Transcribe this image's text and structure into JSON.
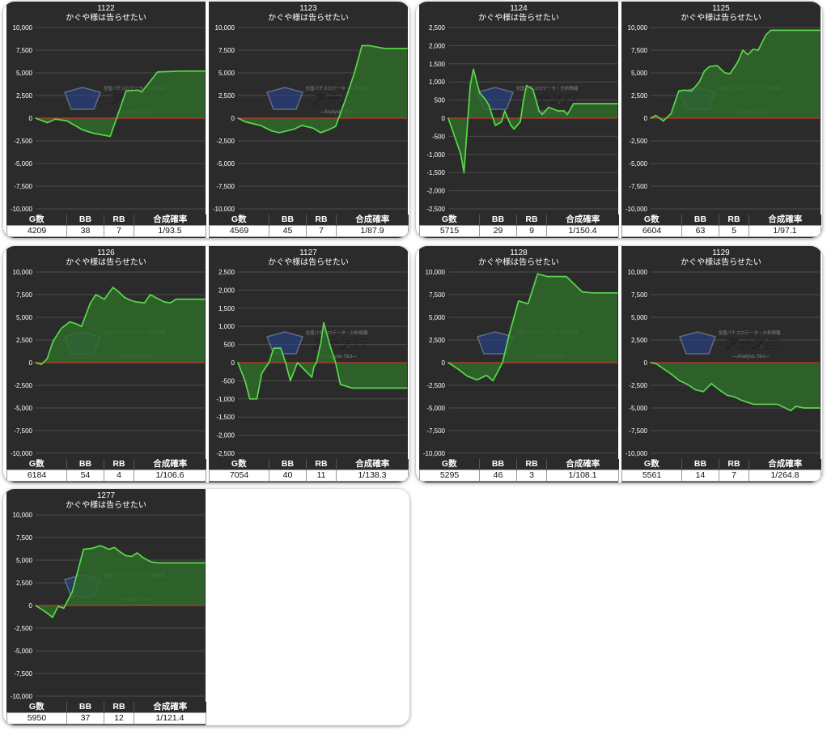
{
  "title_text": "かぐや様は告らせたい",
  "headers": [
    "G数",
    "BB",
    "RB",
    "合成確率"
  ],
  "watermark": {
    "main": "アナスロ",
    "sub": "—Analysis Slot—",
    "top": "全国パチスロデータ・分析情報"
  },
  "colors": {
    "panel_bg": "#2b2b2b",
    "line": "#58d94a",
    "fill": "#2f6a2a",
    "zero_line": "#c0392b",
    "grid": "#4c4c4c",
    "text": "#ffffff"
  },
  "chart_data": [
    {
      "type": "area",
      "machine": "1122",
      "title": "かぐや様は告らせたい",
      "ylim": [
        -10000,
        10000
      ],
      "yticks": [
        "10,000",
        "7,500",
        "5,000",
        "2,500",
        "0",
        "-2,500",
        "-5,000",
        "-7,500",
        "-10,000"
      ],
      "x": [
        0,
        3,
        5,
        8,
        12,
        15,
        19,
        21,
        23,
        26,
        27,
        31,
        37,
        43
      ],
      "y": [
        0,
        -500,
        -100,
        -300,
        -1300,
        -1700,
        -2000,
        500,
        3000,
        3100,
        2900,
        5100,
        5200,
        5200
      ],
      "stats": {
        "games": "4209",
        "bb": "38",
        "rb": "7",
        "rate": "1/93.5"
      }
    },
    {
      "type": "area",
      "machine": "1123",
      "title": "かぐや様は告らせたい",
      "ylim": [
        -10000,
        10000
      ],
      "yticks": [
        "10,000",
        "7,500",
        "5,000",
        "2,500",
        "0",
        "-2,500",
        "-5,000",
        "-7,500",
        "-10,000"
      ],
      "x": [
        0,
        2,
        6,
        9,
        11,
        13,
        15,
        17,
        18,
        20,
        22,
        24,
        26,
        29,
        31,
        33,
        35,
        39,
        41,
        45
      ],
      "y": [
        0,
        -400,
        -800,
        -1400,
        -1600,
        -1400,
        -1200,
        -800,
        -900,
        -1100,
        -1600,
        -1300,
        -900,
        2500,
        5000,
        8000,
        8000,
        7700,
        7700,
        7700
      ],
      "stats": {
        "games": "4569",
        "bb": "45",
        "rb": "7",
        "rate": "1/87.9"
      }
    },
    {
      "type": "area",
      "machine": "1124",
      "title": "かぐや様は告らせたい",
      "ylim": [
        -2500,
        2500
      ],
      "yticks": [
        "2,500",
        "2,000",
        "1,500",
        "1,000",
        "500",
        "0",
        "-500",
        "-1,000",
        "-1,500",
        "-2,000",
        "-2,500"
      ],
      "x": [
        0,
        4,
        5,
        7,
        8,
        10,
        12,
        13,
        15,
        17,
        18,
        20,
        21,
        23,
        24,
        25,
        27,
        29,
        30,
        32,
        35,
        37,
        38,
        40,
        43,
        44,
        46,
        50,
        54
      ],
      "y": [
        0,
        -1000,
        -1500,
        900,
        1350,
        700,
        500,
        350,
        -200,
        -100,
        200,
        -200,
        -300,
        -100,
        500,
        900,
        800,
        200,
        100,
        300,
        200,
        200,
        100,
        400,
        400,
        400,
        400,
        400,
        400
      ],
      "stats": {
        "games": "5715",
        "bb": "29",
        "rb": "9",
        "rate": "1/150.4"
      }
    },
    {
      "type": "area",
      "machine": "1125",
      "title": "かぐや様は告らせたい",
      "ylim": [
        -10000,
        10000
      ],
      "yticks": [
        "10,000",
        "7,500",
        "5,000",
        "2,500",
        "0",
        "-2,500",
        "-5,000",
        "-7,500",
        "-10,000"
      ],
      "x": [
        0,
        2,
        5,
        8,
        11,
        13,
        16,
        19,
        21,
        23,
        26,
        29,
        31,
        34,
        36,
        38,
        40,
        42,
        45,
        47,
        50,
        55,
        62,
        66
      ],
      "y": [
        0,
        300,
        -300,
        500,
        3000,
        3100,
        3000,
        4000,
        5200,
        5700,
        5800,
        5000,
        4900,
        6200,
        7500,
        7000,
        7600,
        7500,
        9200,
        9700,
        9700,
        9700,
        9700,
        9700
      ],
      "stats": {
        "games": "6604",
        "bb": "63",
        "rb": "5",
        "rate": "1/97.1"
      }
    },
    {
      "type": "area",
      "machine": "1126",
      "title": "かぐや様は告らせたい",
      "ylim": [
        -10000,
        10000
      ],
      "yticks": [
        "10,000",
        "7,500",
        "5,000",
        "2,500",
        "0",
        "-2,500",
        "-5,000",
        "-7,500",
        "-10,000"
      ],
      "x": [
        0,
        2,
        4,
        6,
        9,
        12,
        14,
        16,
        19,
        21,
        24,
        27,
        29,
        31,
        33,
        35,
        38,
        40,
        43,
        45,
        47,
        49,
        52,
        56,
        59
      ],
      "y": [
        0,
        -200,
        400,
        2300,
        3800,
        4500,
        4300,
        4000,
        6500,
        7500,
        7000,
        8300,
        7800,
        7200,
        6900,
        6700,
        6600,
        7500,
        7000,
        6700,
        6600,
        7000,
        7000,
        7000,
        7000
      ],
      "stats": {
        "games": "6184",
        "bb": "54",
        "rb": "4",
        "rate": "1/106.6"
      }
    },
    {
      "type": "area",
      "machine": "1127",
      "title": "かぐや様は告らせたい",
      "ylim": [
        -2500,
        2500
      ],
      "yticks": [
        "2,500",
        "2,000",
        "1,500",
        "1,000",
        "500",
        "0",
        "-500",
        "-1,000",
        "-1,500",
        "-2,000",
        "-2,500"
      ],
      "x": [
        0,
        3,
        5,
        8,
        10,
        13,
        15,
        18,
        20,
        22,
        25,
        28,
        31,
        32,
        33,
        35,
        36,
        39,
        41,
        43,
        48,
        51,
        53,
        55,
        60,
        65,
        71
      ],
      "y": [
        0,
        -500,
        -1000,
        -1000,
        -300,
        0,
        400,
        400,
        0,
        -500,
        0,
        -200,
        -400,
        -100,
        0,
        600,
        1100,
        400,
        0,
        -600,
        -700,
        -700,
        -700,
        -700,
        -700,
        -700,
        -700
      ],
      "stats": {
        "games": "7054",
        "bb": "40",
        "rb": "11",
        "rate": "1/138.3"
      }
    },
    {
      "type": "area",
      "machine": "1128",
      "title": "かぐや様は告らせたい",
      "ylim": [
        -10000,
        10000
      ],
      "yticks": [
        "10,000",
        "7,500",
        "5,000",
        "2,500",
        "0",
        "-2,500",
        "-5,000",
        "-7,500",
        "-10,000"
      ],
      "x": [
        0,
        3,
        6,
        9,
        12,
        14,
        17,
        19,
        22,
        25,
        28,
        31,
        33,
        35,
        37,
        39,
        42,
        45,
        48,
        51,
        53
      ],
      "y": [
        0,
        -700,
        -1500,
        -1900,
        -1400,
        -2000,
        0,
        3000,
        6800,
        6500,
        9800,
        9500,
        9500,
        9500,
        9500,
        8800,
        7800,
        7700,
        7700,
        7700,
        7700
      ],
      "stats": {
        "games": "5295",
        "bb": "46",
        "rb": "3",
        "rate": "1/108.1"
      }
    },
    {
      "type": "area",
      "machine": "1129",
      "title": "かぐや様は告らせたい",
      "ylim": [
        -10000,
        10000
      ],
      "yticks": [
        "10,000",
        "7,500",
        "5,000",
        "2,500",
        "0",
        "-2,500",
        "-5,000",
        "-7,500",
        "-10,000"
      ],
      "x": [
        0,
        2,
        5,
        8,
        11,
        14,
        17,
        20,
        23,
        26,
        29,
        32,
        34,
        37,
        39,
        42,
        45,
        48,
        51,
        53,
        55,
        58,
        61,
        64
      ],
      "y": [
        0,
        -100,
        -700,
        -1300,
        -2000,
        -2400,
        -3000,
        -3200,
        -2300,
        -3000,
        -3600,
        -3800,
        -4100,
        -4400,
        -4600,
        -4600,
        -4600,
        -4600,
        -5000,
        -5300,
        -4800,
        -5000,
        -5000,
        -5000
      ],
      "stats": {
        "games": "5561",
        "bb": "14",
        "rb": "7",
        "rate": "1/264.8"
      }
    },
    {
      "type": "area",
      "machine": "1277",
      "title": "かぐや様は告らせたい",
      "ylim": [
        -10000,
        10000
      ],
      "yticks": [
        "10,000",
        "7,500",
        "5,000",
        "2,500",
        "0",
        "-2,500",
        "-5,000",
        "-7,500",
        "-10,000"
      ],
      "x": [
        0,
        3,
        6,
        8,
        10,
        13,
        17,
        20,
        23,
        26,
        28,
        30,
        32,
        34,
        36,
        38,
        41,
        44,
        47,
        50,
        53,
        57,
        60
      ],
      "y": [
        0,
        -600,
        -1300,
        -100,
        -300,
        1500,
        6200,
        6300,
        6600,
        6200,
        6400,
        5900,
        5500,
        5400,
        5800,
        5300,
        4800,
        4700,
        4700,
        4700,
        4700,
        4700,
        4700
      ],
      "stats": {
        "games": "5950",
        "bb": "37",
        "rb": "12",
        "rate": "1/121.4"
      }
    }
  ]
}
